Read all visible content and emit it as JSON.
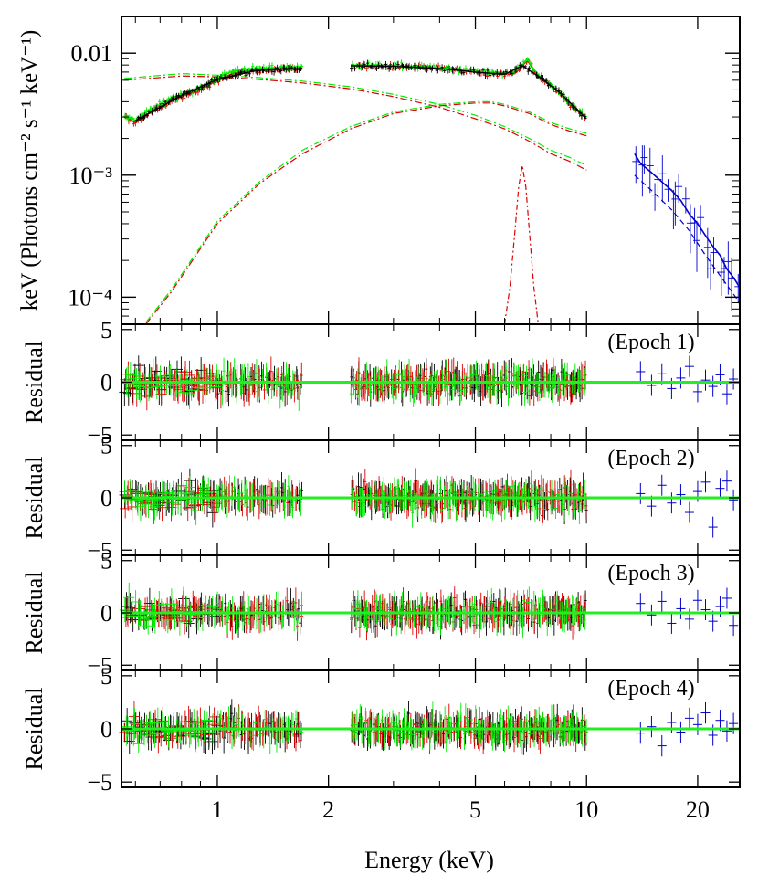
{
  "figure": {
    "xlabel": "Energy (keV)"
  },
  "colors": {
    "black": "#000000",
    "red": "#dd0000",
    "green": "#00ee00",
    "blue": "#0000cc",
    "zero_line": "#22ee22"
  },
  "chart_data": [
    {
      "type": "line",
      "panel": "spectrum",
      "ylabel": "keV (Photons cm⁻² s⁻¹ keV⁻¹)",
      "x_scale": "log",
      "y_scale": "log",
      "xlim": [
        0.55,
        26
      ],
      "ylim": [
        6e-05,
        0.02
      ],
      "yticks": [
        {
          "value": 0.01,
          "label": "0.01"
        },
        {
          "value": 0.001,
          "label": "10⁻³"
        },
        {
          "value": 0.0001,
          "label": "10⁻⁴"
        }
      ],
      "gaps_keV": [
        [
          1.7,
          2.3
        ]
      ],
      "series": [
        {
          "color": "red",
          "role": "data",
          "x": [
            0.56,
            0.6,
            0.65,
            0.7,
            0.75,
            0.8,
            0.9,
            1.0,
            1.1,
            1.2,
            1.3,
            1.5,
            1.7,
            2.3,
            2.5,
            3,
            3.5,
            4,
            4.5,
            5,
            5.5,
            6,
            6.4,
            6.7,
            6.9,
            7.2,
            7.5,
            8,
            8.5,
            9,
            10
          ],
          "y": [
            0.003,
            0.0027,
            0.0032,
            0.0036,
            0.0041,
            0.0044,
            0.005,
            0.006,
            0.0068,
            0.0071,
            0.0072,
            0.0074,
            0.0074,
            0.0079,
            0.0079,
            0.0078,
            0.0077,
            0.0075,
            0.0073,
            0.007,
            0.0068,
            0.0067,
            0.0068,
            0.0078,
            0.0088,
            0.0072,
            0.0062,
            0.0054,
            0.0046,
            0.0038,
            0.0029
          ]
        },
        {
          "color": "green",
          "role": "data",
          "x": [
            0.56,
            0.6,
            0.65,
            0.7,
            0.75,
            0.8,
            0.9,
            1.0,
            1.1,
            1.2,
            1.3,
            1.5,
            1.7,
            2.3,
            2.5,
            3,
            3.5,
            4,
            4.5,
            5,
            5.5,
            6,
            6.4,
            6.7,
            6.9,
            7.2,
            7.5,
            8,
            8.5,
            9,
            10
          ],
          "y": [
            0.0031,
            0.0028,
            0.0034,
            0.0038,
            0.0043,
            0.0046,
            0.0052,
            0.0063,
            0.0071,
            0.0074,
            0.0075,
            0.0077,
            0.0077,
            0.008,
            0.008,
            0.0079,
            0.0078,
            0.0076,
            0.0074,
            0.0071,
            0.0069,
            0.0068,
            0.007,
            0.008,
            0.009,
            0.0074,
            0.0064,
            0.0055,
            0.0047,
            0.0039,
            0.003
          ]
        },
        {
          "color": "black",
          "role": "data",
          "x": [
            0.6,
            0.8,
            1.0,
            1.3,
            1.7,
            2.3,
            3,
            4,
            5,
            6,
            6.7,
            7.5,
            8.5,
            10
          ],
          "y": [
            0.0028,
            0.0045,
            0.0061,
            0.0073,
            0.0075,
            0.0079,
            0.0078,
            0.0075,
            0.007,
            0.0067,
            0.0079,
            0.0063,
            0.0047,
            0.0029
          ]
        },
        {
          "color": "blue",
          "role": "data",
          "x": [
            13.5,
            14,
            15,
            16,
            17,
            18,
            19,
            20,
            21,
            22,
            23,
            24,
            25,
            26
          ],
          "y": [
            0.0015,
            0.00125,
            0.00105,
            0.00088,
            0.00075,
            0.00062,
            0.00048,
            0.0004,
            0.00032,
            0.00026,
            0.00022,
            0.00017,
            0.000145,
            0.00012
          ]
        },
        {
          "color": "red",
          "role": "model-soft",
          "x": [
            0.56,
            0.8,
            1.0,
            1.3,
            1.7,
            2.3,
            3,
            4,
            5,
            6,
            7,
            8,
            9,
            10
          ],
          "y": [
            0.006,
            0.0065,
            0.0064,
            0.0061,
            0.0057,
            0.0051,
            0.0044,
            0.0036,
            0.0029,
            0.0024,
            0.0019,
            0.0015,
            0.0013,
            0.0011
          ]
        },
        {
          "color": "green",
          "role": "model-soft",
          "x": [
            0.56,
            0.8,
            1.0,
            1.3,
            1.7,
            2.3,
            3,
            4,
            5,
            6,
            7,
            8,
            9,
            10
          ],
          "y": [
            0.0062,
            0.0068,
            0.0066,
            0.0063,
            0.0059,
            0.0053,
            0.0046,
            0.0038,
            0.0031,
            0.0025,
            0.002,
            0.0016,
            0.0014,
            0.0012
          ]
        },
        {
          "color": "red",
          "role": "model-hard",
          "x": [
            0.64,
            0.75,
            0.9,
            1.0,
            1.3,
            1.7,
            2.3,
            3,
            4,
            5,
            5.5,
            6,
            7,
            8,
            9,
            10
          ],
          "y": [
            6e-05,
            0.00011,
            0.00025,
            0.0004,
            0.00085,
            0.0015,
            0.0024,
            0.0032,
            0.0037,
            0.0039,
            0.0039,
            0.0037,
            0.0032,
            0.0026,
            0.0023,
            0.0021
          ]
        },
        {
          "color": "green",
          "role": "model-hard",
          "x": [
            0.64,
            0.75,
            0.9,
            1.0,
            1.3,
            1.7,
            2.3,
            3,
            4,
            5,
            5.5,
            6,
            7,
            8,
            9,
            10
          ],
          "y": [
            6.2e-05,
            0.000115,
            0.00026,
            0.00042,
            0.00088,
            0.0016,
            0.0025,
            0.0033,
            0.0038,
            0.004,
            0.004,
            0.0038,
            0.0033,
            0.0027,
            0.0024,
            0.0022
          ]
        },
        {
          "color": "red",
          "role": "model-line",
          "x": [
            6.0,
            6.2,
            6.4,
            6.55,
            6.7,
            6.85,
            7.0,
            7.2,
            7.4
          ],
          "y": [
            6e-05,
            0.00012,
            0.00035,
            0.0008,
            0.0012,
            0.0008,
            0.00035,
            0.00012,
            6e-05
          ]
        },
        {
          "color": "blue",
          "role": "model",
          "x": [
            13.5,
            15,
            17,
            19,
            21,
            23,
            26
          ],
          "y": [
            0.001,
            0.00075,
            0.00052,
            0.00035,
            0.00022,
            0.00015,
            9e-05
          ]
        }
      ]
    },
    {
      "type": "scatter",
      "panel": "residual",
      "label": "(Epoch 1)",
      "ylabel": "Residual",
      "x_scale": "log",
      "ylim": [
        -5.5,
        5.5
      ],
      "yticks": [
        {
          "value": 5,
          "label": "5"
        },
        {
          "value": 0,
          "label": "0"
        },
        {
          "value": -5,
          "label": "−5"
        }
      ],
      "blue_points": {
        "x": [
          14,
          15,
          16,
          17,
          18,
          19,
          20,
          21,
          22,
          23,
          24,
          25
        ],
        "y": [
          1.0,
          -0.3,
          0.8,
          -0.6,
          0.4,
          1.5,
          -0.9,
          0.2,
          -0.4,
          0.7,
          -1.1,
          0.3
        ]
      }
    },
    {
      "type": "scatter",
      "panel": "residual",
      "label": "(Epoch 2)",
      "ylabel": "Residual",
      "x_scale": "log",
      "ylim": [
        -5.5,
        5.5
      ],
      "yticks": [
        {
          "value": 5,
          "label": "5"
        },
        {
          "value": 0,
          "label": "0"
        },
        {
          "value": -5,
          "label": "−5"
        }
      ],
      "blue_points": {
        "x": [
          14,
          15,
          16,
          17,
          18,
          19,
          20,
          21,
          22,
          23,
          24,
          25
        ],
        "y": [
          0.4,
          -0.8,
          1.2,
          -0.5,
          0.3,
          -1.4,
          0.6,
          1.5,
          -2.8,
          0.9,
          1.6,
          -0.2
        ]
      }
    },
    {
      "type": "scatter",
      "panel": "residual",
      "label": "(Epoch 3)",
      "ylabel": "Residual",
      "x_scale": "log",
      "ylim": [
        -5.5,
        5.5
      ],
      "yticks": [
        {
          "value": 5,
          "label": "5"
        },
        {
          "value": 0,
          "label": "0"
        },
        {
          "value": -5,
          "label": "−5"
        }
      ],
      "blue_points": {
        "x": [
          14,
          15,
          16,
          17,
          18,
          19,
          20,
          21,
          22,
          23,
          24,
          25
        ],
        "y": [
          0.9,
          -0.2,
          1.1,
          -1.0,
          0.4,
          -0.6,
          1.2,
          0.3,
          -0.8,
          0.6,
          1.4,
          -1.2
        ]
      }
    },
    {
      "type": "scatter",
      "panel": "residual",
      "label": "(Epoch 4)",
      "ylabel": "Residual",
      "x_scale": "log",
      "ylim": [
        -5.5,
        5.5
      ],
      "yticks": [
        {
          "value": 5,
          "label": "5"
        },
        {
          "value": 0,
          "label": "0"
        },
        {
          "value": -5,
          "label": "−5"
        }
      ],
      "xticks": [
        {
          "value": 1,
          "label": "1"
        },
        {
          "value": 2,
          "label": "2"
        },
        {
          "value": 5,
          "label": "5"
        },
        {
          "value": 10,
          "label": "10"
        },
        {
          "value": 20,
          "label": "20"
        }
      ],
      "blue_points": {
        "x": [
          14,
          15,
          16,
          17,
          18,
          19,
          20,
          21,
          22,
          23,
          24,
          25
        ],
        "y": [
          -0.4,
          0.2,
          -1.6,
          0.6,
          -0.3,
          1.0,
          0.4,
          1.5,
          -0.6,
          0.8,
          -0.2,
          0.5
        ]
      }
    }
  ]
}
